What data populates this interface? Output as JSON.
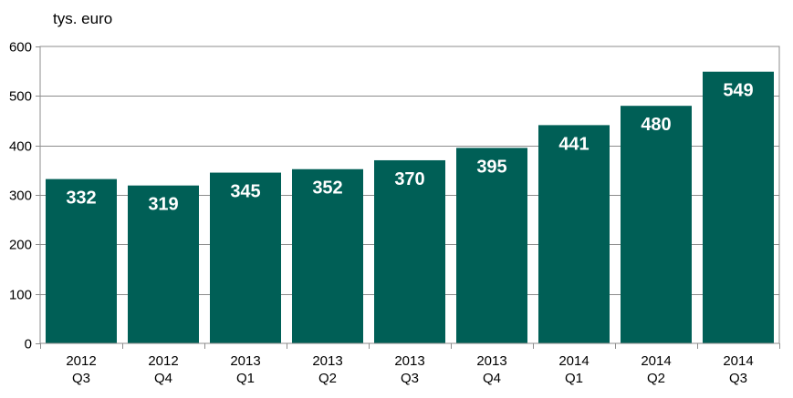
{
  "chart_data": {
    "type": "bar",
    "title": "",
    "xlabel": "",
    "ylabel": "tys. euro",
    "ylim": [
      0,
      600
    ],
    "yticks": [
      0,
      100,
      200,
      300,
      400,
      500,
      600
    ],
    "grid": true,
    "legend": "none",
    "bar_color": "#005F56",
    "categories": [
      [
        "2012",
        "Q3"
      ],
      [
        "2012",
        "Q4"
      ],
      [
        "2013",
        "Q1"
      ],
      [
        "2013",
        "Q2"
      ],
      [
        "2013",
        "Q3"
      ],
      [
        "2013",
        "Q4"
      ],
      [
        "2014",
        "Q1"
      ],
      [
        "2014",
        "Q2"
      ],
      [
        "2014",
        "Q3"
      ]
    ],
    "values": [
      332,
      319,
      345,
      352,
      370,
      395,
      441,
      480,
      549
    ]
  }
}
